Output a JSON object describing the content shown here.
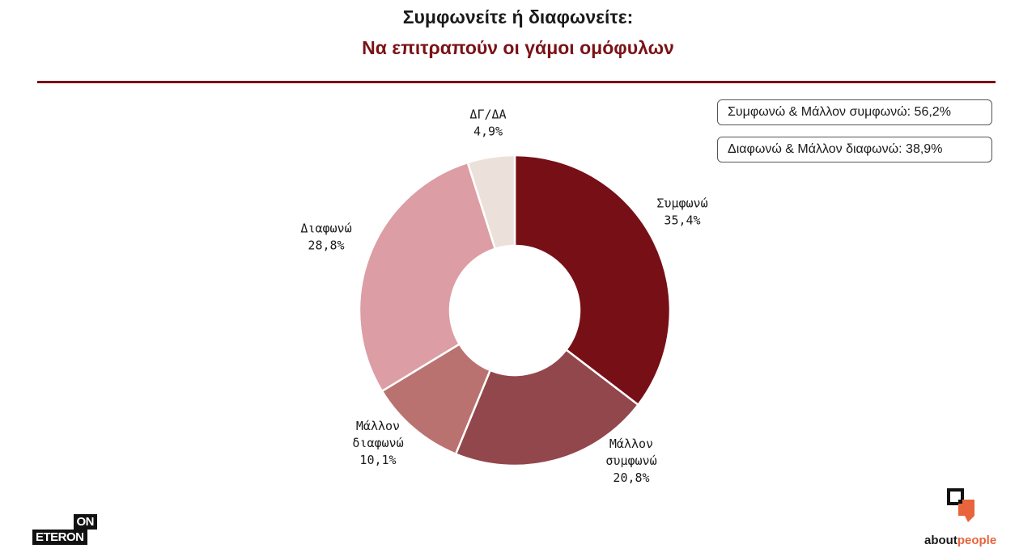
{
  "header": {
    "title": "Συμφωνείτε ή διαφωνείτε:",
    "subtitle": "Να επιτραπούν οι γάμοι ομόφυλων"
  },
  "summary": {
    "agree_total": "Συμφωνώ & Μάλλον συμφωνώ: 56,2%",
    "disagree_total": "Διαφωνώ & Μάλλον διαφωνώ: 38,9%"
  },
  "chart_data": {
    "type": "pie",
    "title": "Συμφωνείτε ή διαφωνείτε:",
    "subtitle": "Να επιτραπούν οι γάμοι ομόφυλων",
    "donut": true,
    "slices": [
      {
        "label": [
          "Συμφωνώ"
        ],
        "value": 35.4,
        "value_text": "35,4%",
        "color": "#761016"
      },
      {
        "label": [
          "Μάλλον",
          "συμφωνώ"
        ],
        "value": 20.8,
        "value_text": "20,8%",
        "color": "#92474c"
      },
      {
        "label": [
          "Μάλλον",
          "διαφωνώ"
        ],
        "value": 10.1,
        "value_text": "10,1%",
        "color": "#b9726f"
      },
      {
        "label": [
          "Διαφωνώ"
        ],
        "value": 28.8,
        "value_text": "28,8%",
        "color": "#dc9da4"
      },
      {
        "label": [
          "ΔΓ/ΔΑ"
        ],
        "value": 4.9,
        "value_text": "4,9%",
        "color": "#ebe1da"
      }
    ]
  },
  "logos": {
    "left_top": "ON",
    "left_bottom": "ETERON",
    "right_word_a": "about",
    "right_word_b": "people",
    "colors": {
      "accent": "#7a1216",
      "brand_orange": "#e8643c"
    }
  }
}
